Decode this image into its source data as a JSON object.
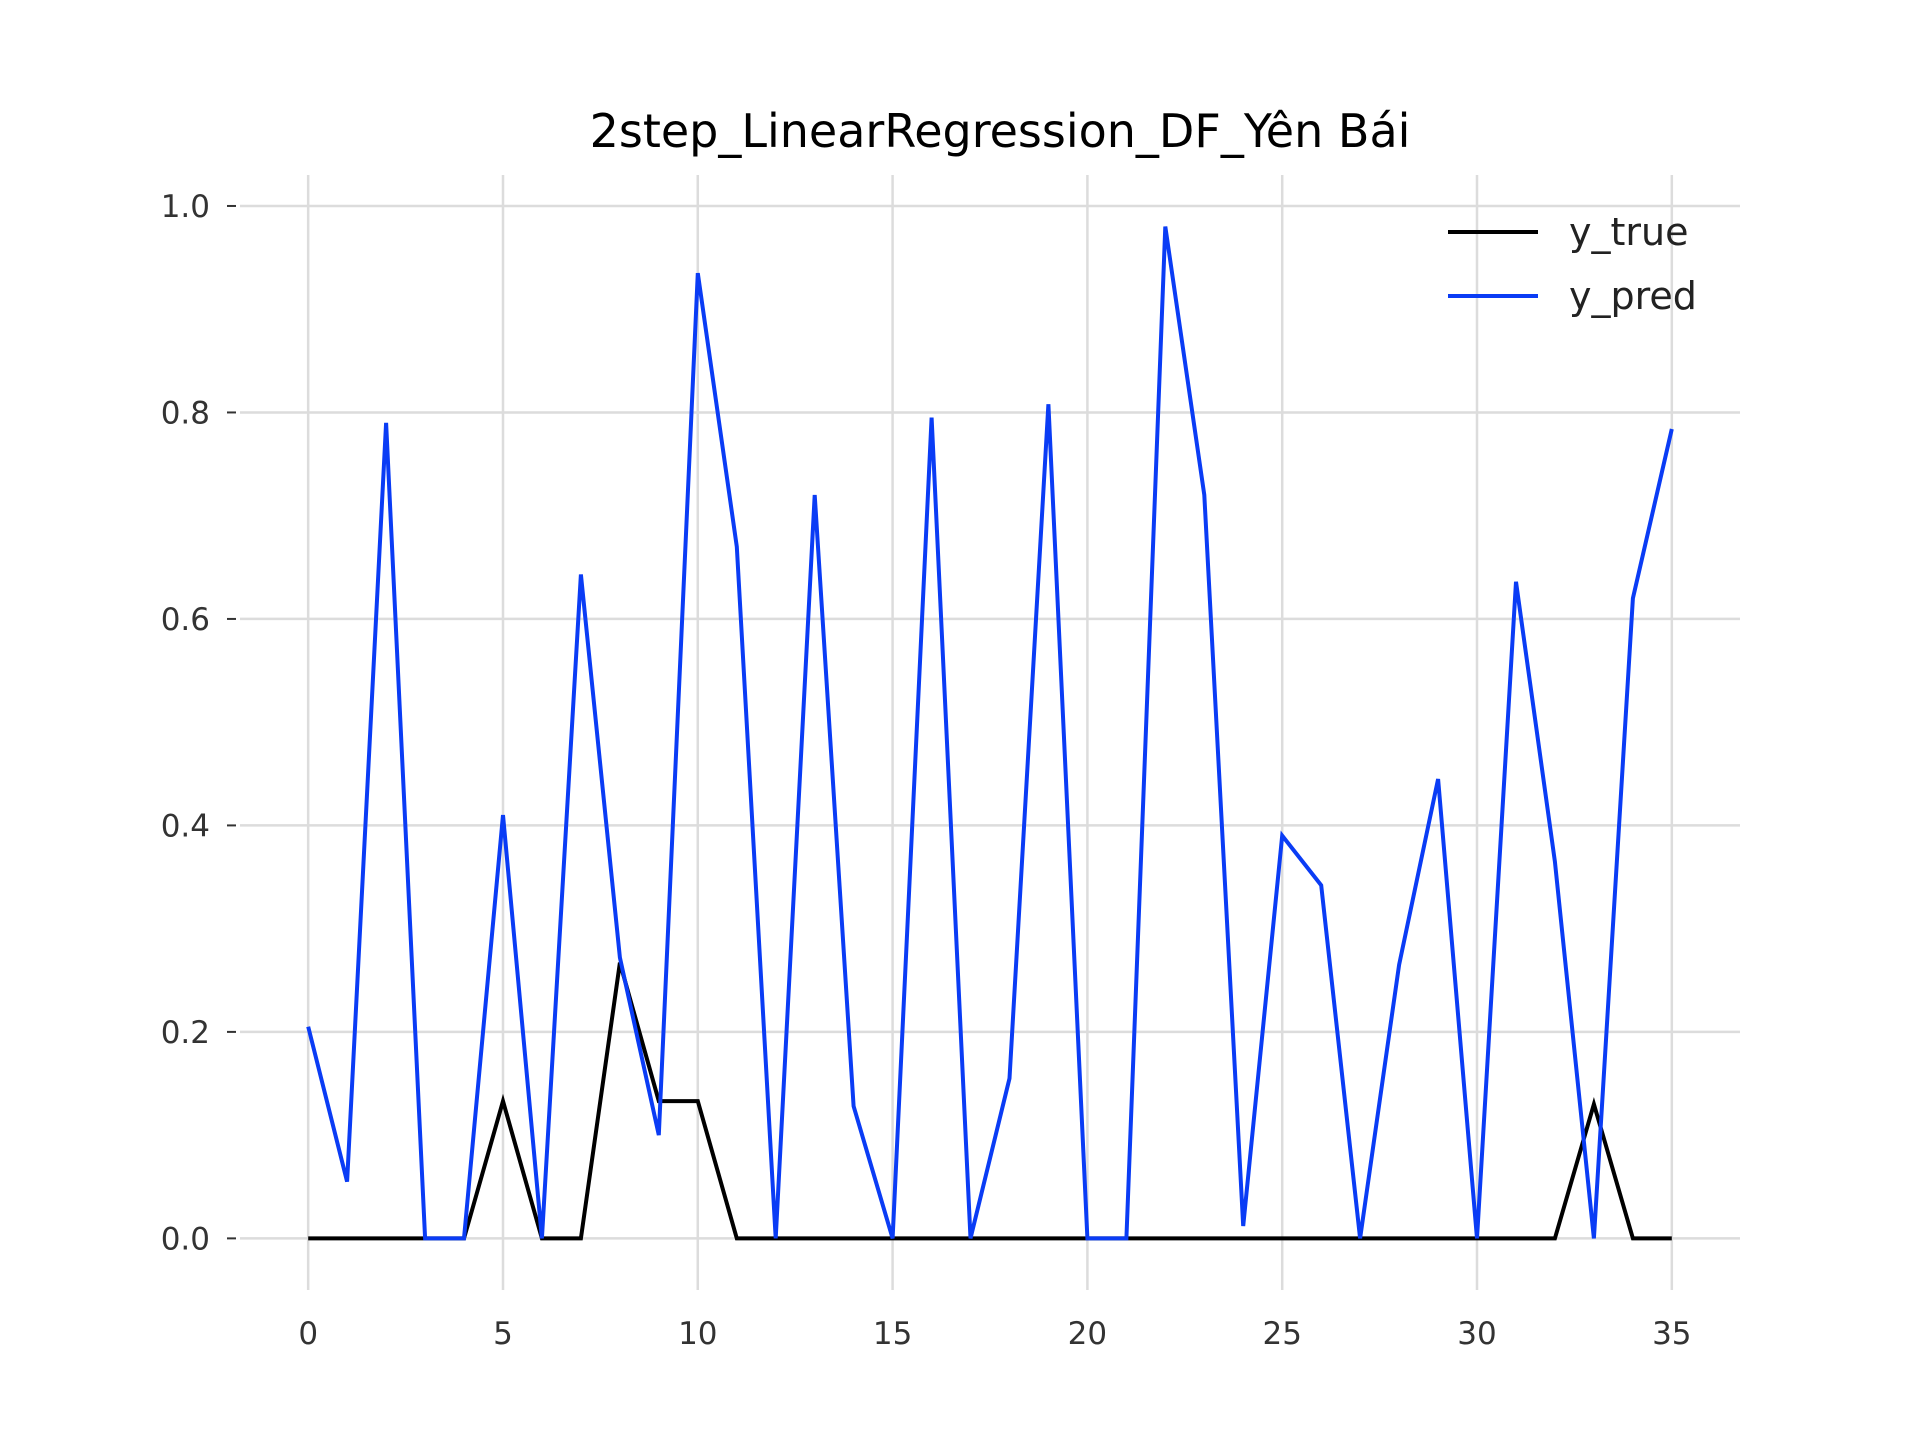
{
  "chart_data": {
    "type": "line",
    "title": "2step_LinearRegression_DF_Yên Bái",
    "xlabel": "",
    "ylabel": "",
    "xlim": [
      -1.75,
      36.75
    ],
    "ylim": [
      -0.05,
      1.03
    ],
    "xticks": [
      0,
      5,
      10,
      15,
      20,
      25,
      30,
      35
    ],
    "yticks": [
      0.0,
      0.2,
      0.4,
      0.6,
      0.8,
      1.0
    ],
    "ytick_labels": [
      "0.0",
      "0.2",
      "0.4",
      "0.6",
      "0.8",
      "1.0"
    ],
    "grid": true,
    "legend_position": "top-right",
    "x": [
      0,
      1,
      2,
      3,
      4,
      5,
      6,
      7,
      8,
      9,
      10,
      11,
      12,
      13,
      14,
      15,
      16,
      17,
      18,
      19,
      20,
      21,
      22,
      23,
      24,
      25,
      26,
      27,
      28,
      29,
      30,
      31,
      32,
      33,
      34,
      35
    ],
    "series": [
      {
        "name": "y_true",
        "color": "#000000",
        "values": [
          0,
          0,
          0,
          0,
          0,
          0.133,
          0,
          0,
          0.267,
          0.133,
          0.133,
          0,
          0,
          0,
          0,
          0,
          0,
          0,
          0,
          0,
          0,
          0,
          0,
          0,
          0,
          0,
          0,
          0,
          0,
          0,
          0,
          0,
          0,
          0.13,
          0,
          0
        ]
      },
      {
        "name": "y_pred",
        "color": "#0a3cf5",
        "values": [
          0.205,
          0.055,
          0.79,
          0,
          0,
          0.41,
          0,
          0.643,
          0.272,
          0.1,
          0.935,
          0.67,
          0,
          0.72,
          0.128,
          0,
          0.795,
          0,
          0.155,
          0.808,
          0,
          0,
          0.98,
          0.72,
          0.012,
          0.39,
          0.342,
          0,
          0.265,
          0.445,
          0,
          0.636,
          0.365,
          0,
          0.62,
          0.784
        ]
      }
    ]
  }
}
